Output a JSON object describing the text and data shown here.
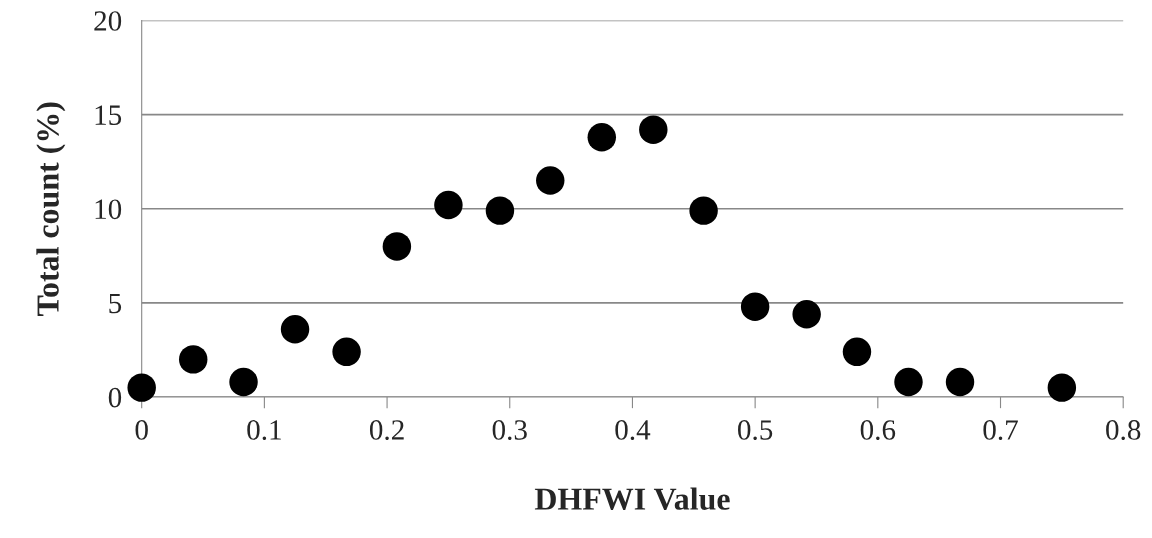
{
  "chart_data": {
    "type": "scatter",
    "xlabel": "DHFWI Value",
    "ylabel": "Total count (%)",
    "x": [
      0,
      0.042,
      0.083,
      0.125,
      0.167,
      0.208,
      0.25,
      0.292,
      0.333,
      0.375,
      0.417,
      0.458,
      0.5,
      0.542,
      0.583,
      0.625,
      0.667,
      0.75
    ],
    "series": [
      {
        "color": "#000000",
        "values": [
          0.5,
          2.0,
          0.8,
          3.6,
          2.4,
          8.0,
          10.2,
          9.9,
          11.5,
          13.8,
          14.2,
          9.9,
          4.8,
          4.4,
          2.4,
          0.8,
          0.8,
          0.5
        ]
      }
    ],
    "xlim": [
      0,
      0.8
    ],
    "xticks": [
      0,
      0.1,
      0.2,
      0.3,
      0.4,
      0.5,
      0.6,
      0.7,
      0.8
    ],
    "ylim": [
      0,
      20
    ],
    "yticks": [
      0,
      5,
      10,
      15,
      20
    ],
    "grid": "y",
    "marker": "circle",
    "legend": false
  }
}
